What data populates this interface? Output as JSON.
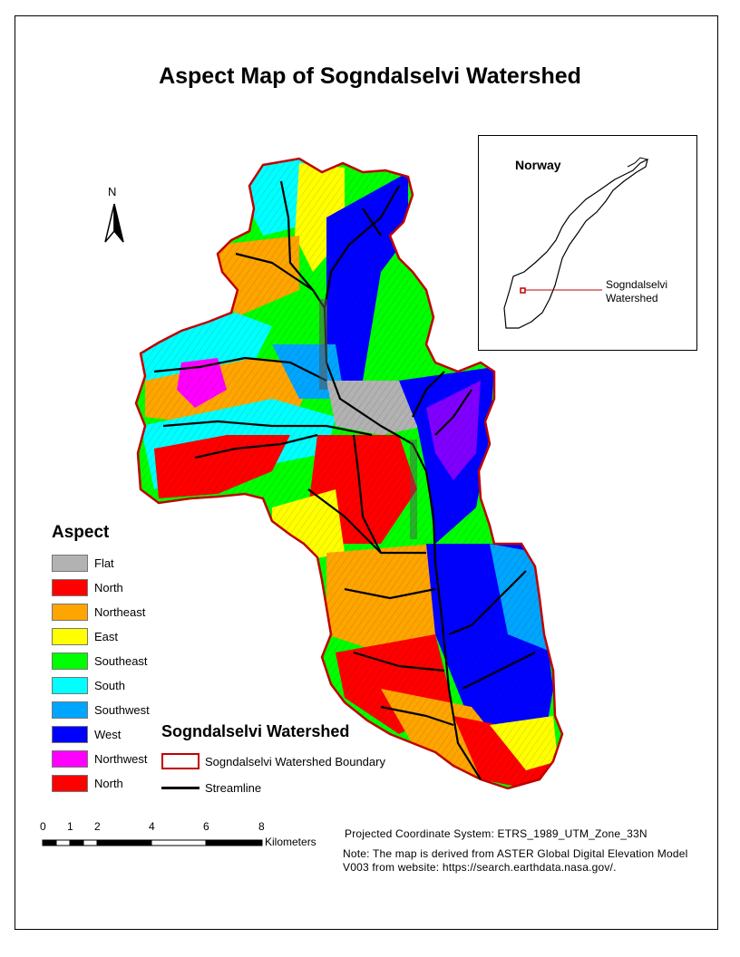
{
  "map_title": "Aspect Map of Sogndalselvi Watershed",
  "north_arrow_label": "N",
  "inset": {
    "title": "Norway",
    "location_label": "Sogndalselvi Watershed"
  },
  "legend": {
    "title": "Aspect",
    "items": [
      {
        "label": "Flat",
        "color": "#b2b2b2"
      },
      {
        "label": "North",
        "color": "#ff0000"
      },
      {
        "label": "Northeast",
        "color": "#ffa500"
      },
      {
        "label": "East",
        "color": "#ffff00"
      },
      {
        "label": "Southeast",
        "color": "#00ff00"
      },
      {
        "label": "South",
        "color": "#00ffff"
      },
      {
        "label": "Southwest",
        "color": "#00a5ff"
      },
      {
        "label": "West",
        "color": "#0000ff"
      },
      {
        "label": "Northwest",
        "color": "#ff00ff"
      },
      {
        "label": "North",
        "color": "#ff0000"
      }
    ]
  },
  "watershed_legend": {
    "title": "Sogndalselvi Watershed",
    "boundary_label": "Sogndalselvi Watershed Boundary",
    "boundary_color": "#c00000",
    "streamline_label": "Streamline",
    "streamline_color": "#000000"
  },
  "scale_bar": {
    "ticks": [
      "0",
      "1",
      "2",
      "4",
      "6",
      "8"
    ],
    "unit": "Kilometers"
  },
  "projection": "Projected Coordinate System:   ETRS_1989_UTM_Zone_33N",
  "note": "Note: The map is derived from ASTER Global Digital Elevation Model V003 from website: https://search.earthdata.nasa.gov/."
}
